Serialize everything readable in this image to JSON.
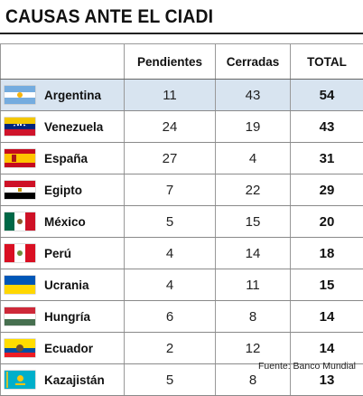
{
  "title": "CAUSAS ANTE EL CIADI",
  "table": {
    "headers": [
      "",
      "Pendientes",
      "Cerradas",
      "TOTAL"
    ],
    "rows": [
      {
        "country": "Argentina",
        "pendientes": "11",
        "cerradas": "43",
        "total": "54",
        "flag_icon": "argentina-flag-icon"
      },
      {
        "country": "Venezuela",
        "pendientes": "24",
        "cerradas": "19",
        "total": "43",
        "flag_icon": "venezuela-flag-icon"
      },
      {
        "country": "España",
        "pendientes": "27",
        "cerradas": "4",
        "total": "31",
        "flag_icon": "spain-flag-icon"
      },
      {
        "country": "Egipto",
        "pendientes": "7",
        "cerradas": "22",
        "total": "29",
        "flag_icon": "egypt-flag-icon"
      },
      {
        "country": "México",
        "pendientes": "5",
        "cerradas": "15",
        "total": "20",
        "flag_icon": "mexico-flag-icon"
      },
      {
        "country": "Perú",
        "pendientes": "4",
        "cerradas": "14",
        "total": "18",
        "flag_icon": "peru-flag-icon"
      },
      {
        "country": "Ucrania",
        "pendientes": "4",
        "cerradas": "11",
        "total": "15",
        "flag_icon": "ukraine-flag-icon"
      },
      {
        "country": "Hungría",
        "pendientes": "6",
        "cerradas": "8",
        "total": "14",
        "flag_icon": "hungary-flag-icon"
      },
      {
        "country": "Ecuador",
        "pendientes": "2",
        "cerradas": "12",
        "total": "14",
        "flag_icon": "ecuador-flag-icon"
      },
      {
        "country": "Kazajistán",
        "pendientes": "5",
        "cerradas": "8",
        "total": "13",
        "flag_icon": "kazakhstan-flag-icon"
      }
    ]
  },
  "source": "Fuente: Banco Mundial",
  "colors": {
    "highlight_row": "#d8e4f0"
  }
}
